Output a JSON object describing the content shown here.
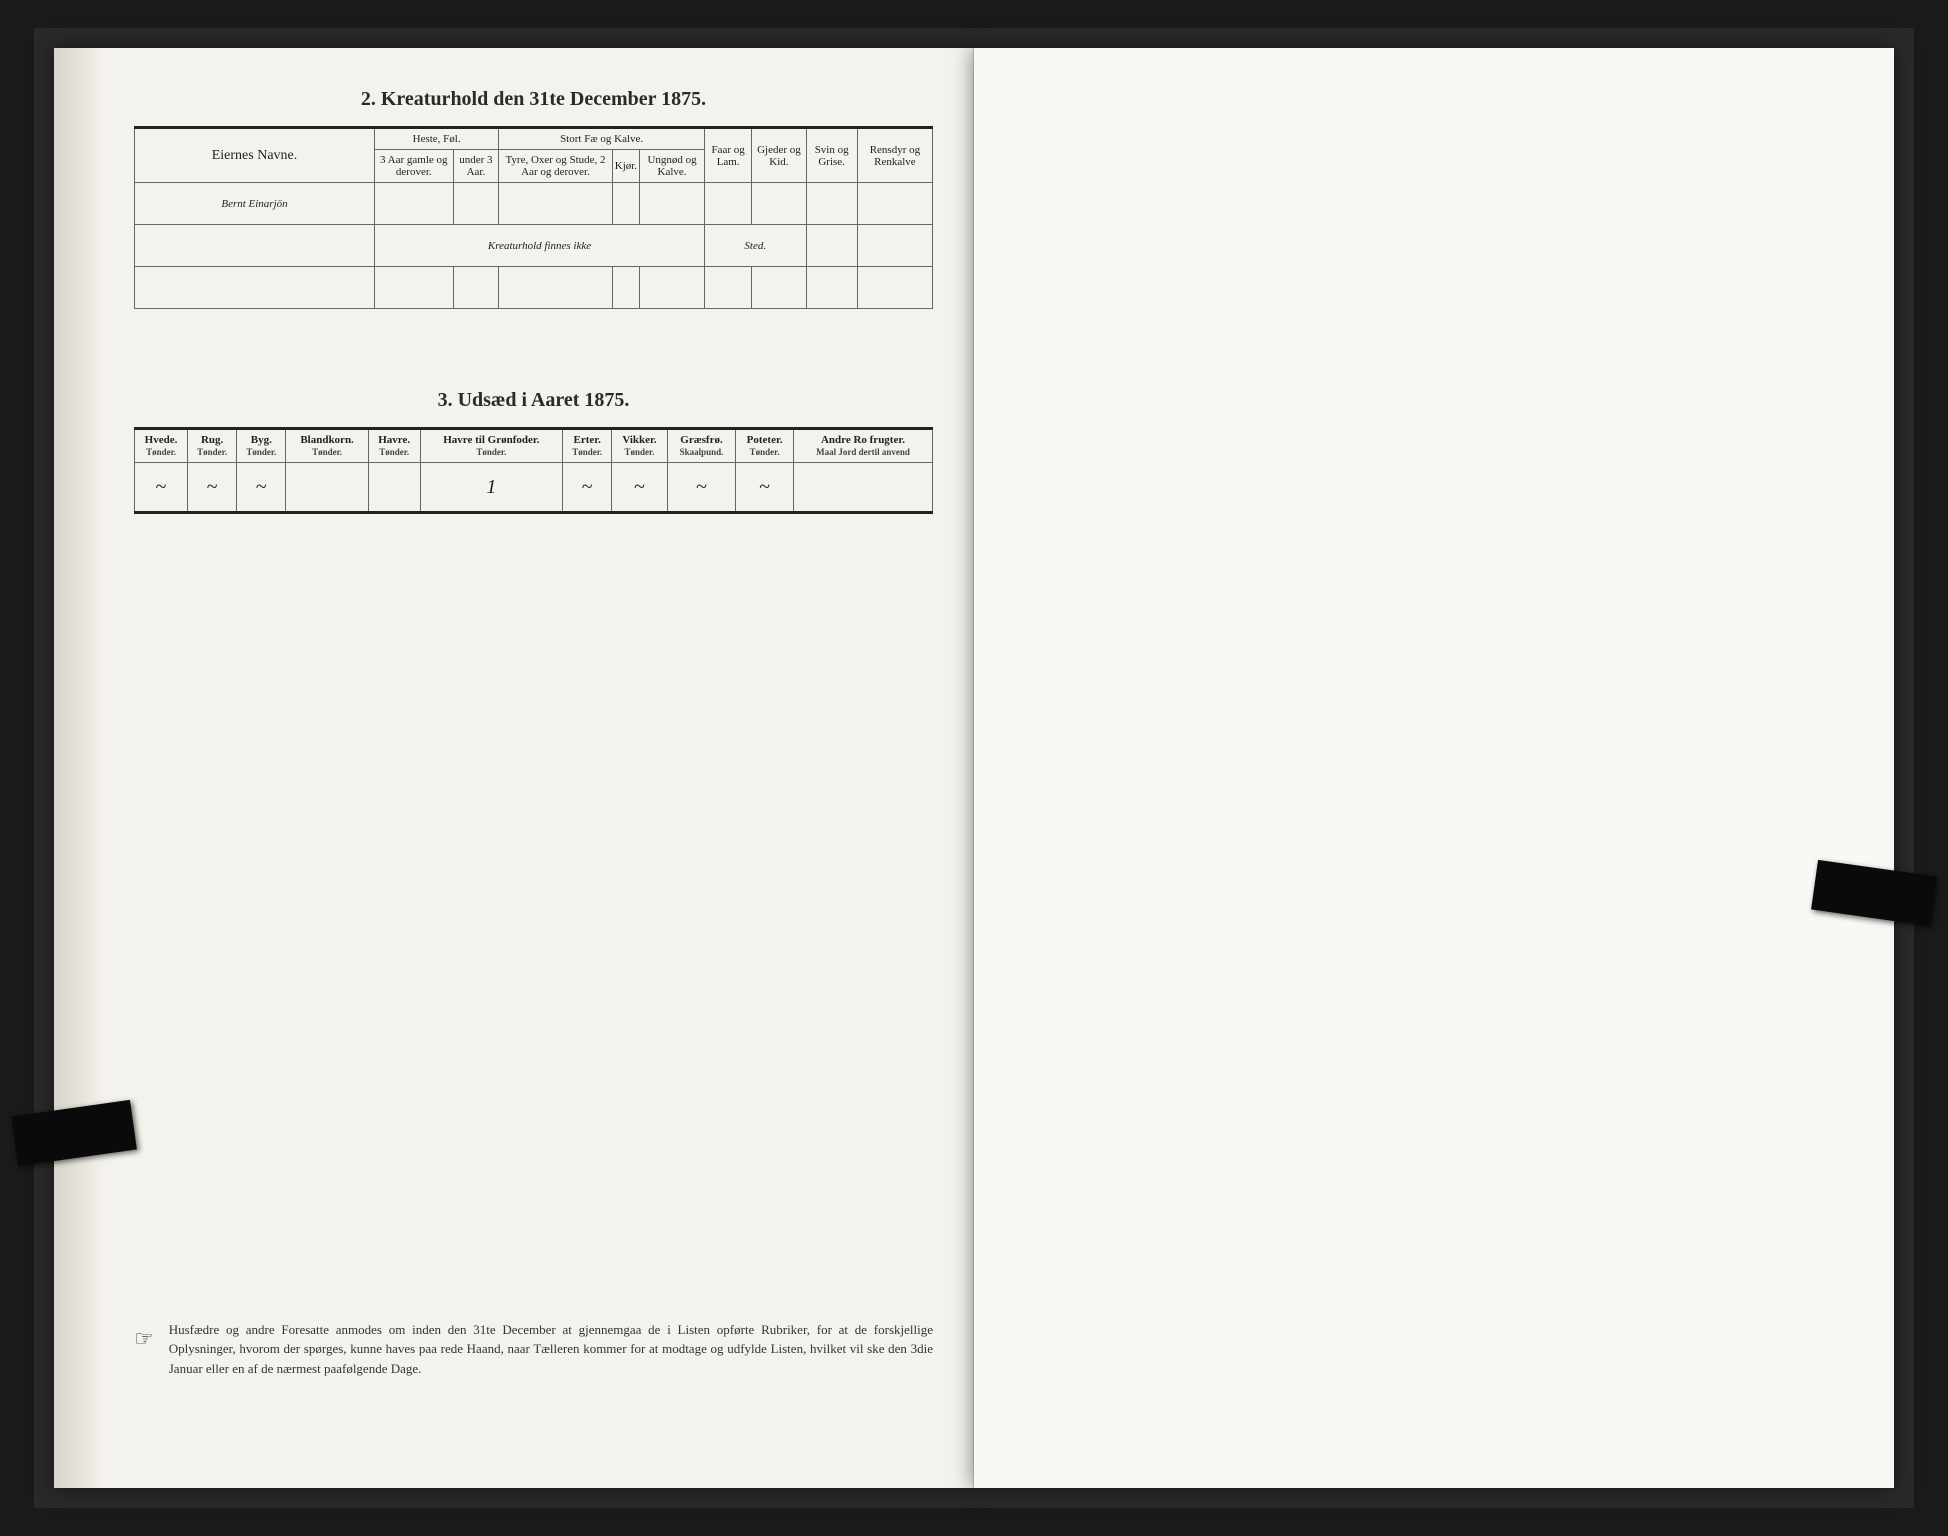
{
  "section2": {
    "title": "2.  Kreaturhold den 31te December 1875.",
    "headers": {
      "names": "Eiernes Navne.",
      "heste_group": "Heste, Føl.",
      "heste_a": "3 Aar gamle og derover.",
      "heste_b": "under 3 Aar.",
      "stort_group": "Stort Fæ og Kalve.",
      "stort_a": "Tyre, Oxer og Stude, 2 Aar og derover.",
      "stort_b": "Kjør.",
      "stort_c": "Ungnød og Kalve.",
      "faar": "Faar og Lam.",
      "gjeder": "Gjeder og Kid.",
      "svin": "Svin og Grise.",
      "rensdyr": "Rensdyr og Renkalve"
    },
    "rows": [
      {
        "name": "Bernt Einarjön",
        "note_left": "Kreaturhold finnes ikke",
        "note_right": "Sted."
      },
      {
        "name": "",
        "note_left": "",
        "note_right": ""
      },
      {
        "name": "",
        "note_left": "",
        "note_right": ""
      }
    ]
  },
  "section3": {
    "title": "3.  Udsæd i Aaret 1875.",
    "columns": [
      {
        "label": "Hvede.",
        "sub": "Tønder."
      },
      {
        "label": "Rug.",
        "sub": "Tønder."
      },
      {
        "label": "Byg.",
        "sub": "Tønder."
      },
      {
        "label": "Blandkorn.",
        "sub": "Tønder."
      },
      {
        "label": "Havre.",
        "sub": "Tønder."
      },
      {
        "label": "Havre til Grønfoder.",
        "sub": "Tønder."
      },
      {
        "label": "Erter.",
        "sub": "Tønder."
      },
      {
        "label": "Vikker.",
        "sub": "Tønder."
      },
      {
        "label": "Græsfrø.",
        "sub": "Skaalpund."
      },
      {
        "label": "Poteter.",
        "sub": "Tønder."
      },
      {
        "label": "Andre Ro frugter.",
        "sub": "Maal Jord dertil anvend"
      }
    ],
    "values": [
      "~",
      "~",
      "~",
      "",
      "",
      "1",
      "~",
      "~",
      "~",
      "~",
      ""
    ]
  },
  "footnote": {
    "text": "Husfædre og andre Foresatte anmodes om inden den 31te December at gjennemgaa de i Listen opførte Rubriker, for at de forskjellige Oplysninger, hvorom der spørges, kunne haves paa rede Haand, naar Tælleren kommer for at modtage og udfylde Listen, hvilket vil ske den 3die Januar eller en af de nærmest paafølgende Dage."
  },
  "colors": {
    "page_bg": "#f4f2ec",
    "page_right_bg": "#faf8f4",
    "outer_bg": "#1a1a1a",
    "rule_dark": "#222222",
    "rule_light": "#666666",
    "text": "#2a2a2a",
    "handwriting": "#3a3a3a"
  }
}
